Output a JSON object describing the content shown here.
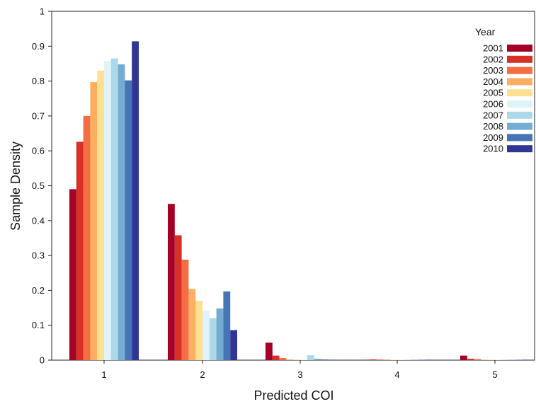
{
  "chart_data": {
    "type": "bar",
    "xlabel": "Predicted COI",
    "ylabel": "Sample Density",
    "categories": [
      "1",
      "2",
      "3",
      "4",
      "5"
    ],
    "ylim": [
      0,
      1
    ],
    "yticks": [
      "0",
      "0.1",
      "0.2",
      "0.3",
      "0.4",
      "0.5",
      "0.6",
      "0.7",
      "0.8",
      "0.9",
      "1"
    ],
    "grid": false,
    "legend": {
      "title": "Year",
      "position": "top-right"
    },
    "series": [
      {
        "name": "2001",
        "color": "#a50026",
        "values": [
          0.49,
          0.448,
          0.05,
          0.001,
          0.013
        ]
      },
      {
        "name": "2002",
        "color": "#d73027",
        "values": [
          0.626,
          0.358,
          0.013,
          0.002,
          0.004
        ]
      },
      {
        "name": "2003",
        "color": "#f46d43",
        "values": [
          0.7,
          0.288,
          0.006,
          0.002,
          0.003
        ]
      },
      {
        "name": "2004",
        "color": "#fdae61",
        "values": [
          0.797,
          0.204,
          0.002,
          0.002,
          0.001
        ]
      },
      {
        "name": "2005",
        "color": "#fee090",
        "values": [
          0.83,
          0.17,
          0.002,
          0.001,
          0.001
        ]
      },
      {
        "name": "2006",
        "color": "#e0f3f8",
        "values": [
          0.858,
          0.142,
          0.001,
          0.001,
          0.001
        ]
      },
      {
        "name": "2007",
        "color": "#abd9e9",
        "values": [
          0.865,
          0.12,
          0.014,
          0.001,
          0.001
        ]
      },
      {
        "name": "2008",
        "color": "#74add1",
        "values": [
          0.848,
          0.148,
          0.004,
          0.001,
          0.001
        ]
      },
      {
        "name": "2009",
        "color": "#4575b4",
        "values": [
          0.802,
          0.197,
          0.002,
          0.001,
          0.001
        ]
      },
      {
        "name": "2010",
        "color": "#313695",
        "values": [
          0.914,
          0.086,
          0.001,
          0.001,
          0.001
        ]
      }
    ]
  }
}
